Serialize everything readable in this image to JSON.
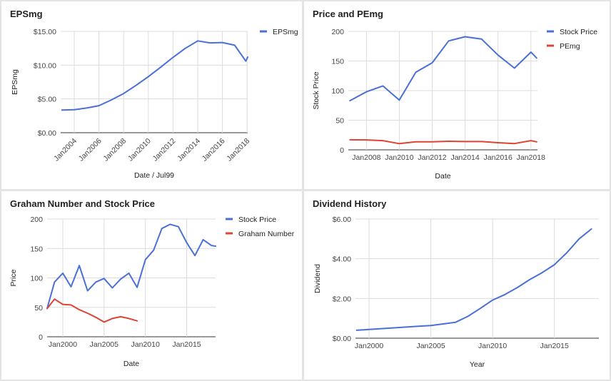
{
  "chart_data": [
    {
      "type": "line",
      "title": "EPSmg",
      "xlabel": "Date / Jul99",
      "ylabel": "EPSmg",
      "x_tick_labels": [
        "Jan2004",
        "Jan2006",
        "Jan2008",
        "Jan2010",
        "Jan2012",
        "Jan2014",
        "Jan2016",
        "Jan2018"
      ],
      "x_tick_values": [
        2004,
        2006,
        2008,
        2010,
        2012,
        2014,
        2016,
        2018
      ],
      "y_tick_labels": [
        "$0.00",
        "$5.00",
        "$10.00",
        "$15.00"
      ],
      "y_tick_values": [
        0,
        5,
        10,
        15
      ],
      "xlim": [
        2002.9,
        2018.05
      ],
      "ylim": [
        0,
        15
      ],
      "legend_position": "top-right",
      "grid": true,
      "series": [
        {
          "name": "EPSmg",
          "color": "#4a6fd6",
          "x": [
            2003,
            2004,
            2005,
            2006,
            2007,
            2008,
            2009,
            2010,
            2011,
            2012,
            2013,
            2014,
            2015,
            2016,
            2017,
            2017.9,
            2018.05
          ],
          "y": [
            3.35,
            3.4,
            3.65,
            4.0,
            4.85,
            5.8,
            7.0,
            8.3,
            9.7,
            11.15,
            12.5,
            13.6,
            13.3,
            13.35,
            12.95,
            10.6,
            11.2
          ]
        }
      ]
    },
    {
      "type": "line",
      "title": "Price and PEmg",
      "xlabel": "Date",
      "ylabel": "Stock Price",
      "x_tick_labels": [
        "Jan2008",
        "Jan2010",
        "Jan2012",
        "Jan2014",
        "Jan2016",
        "Jan2018"
      ],
      "x_tick_values": [
        2008,
        2010,
        2012,
        2014,
        2016,
        2018
      ],
      "y_tick_labels": [
        "0",
        "50",
        "100",
        "150",
        "200"
      ],
      "y_tick_values": [
        0,
        50,
        100,
        150,
        200
      ],
      "xlim": [
        2006.9,
        2018.4
      ],
      "ylim": [
        0,
        200
      ],
      "legend_position": "top-right",
      "grid": true,
      "series": [
        {
          "name": "Stock Price",
          "color": "#4a6fd6",
          "x": [
            2007,
            2008,
            2009,
            2010,
            2011,
            2012,
            2013,
            2014,
            2015,
            2016,
            2017,
            2018,
            2018.35
          ],
          "y": [
            83,
            98,
            108,
            84,
            131,
            147,
            184,
            191,
            187,
            160,
            138,
            165,
            155
          ]
        },
        {
          "name": "PEmg",
          "color": "#db4437",
          "x": [
            2007,
            2008,
            2009,
            2010,
            2011,
            2012,
            2013,
            2014,
            2015,
            2016,
            2017,
            2018,
            2018.35
          ],
          "y": [
            17,
            16.8,
            15.5,
            10.5,
            13.5,
            13.5,
            14.5,
            14,
            14,
            12,
            10.6,
            15.5,
            13.5
          ]
        }
      ]
    },
    {
      "type": "line",
      "title": "Graham Number and Stock Price",
      "xlabel": "Date",
      "ylabel": "Price",
      "x_tick_labels": [
        "Jan2000",
        "Jan2005",
        "Jan2010",
        "Jan2015"
      ],
      "x_tick_values": [
        2000,
        2005,
        2010,
        2015
      ],
      "y_tick_labels": [
        "0",
        "50",
        "100",
        "150",
        "200"
      ],
      "y_tick_values": [
        0,
        50,
        100,
        150,
        200
      ],
      "xlim": [
        1998.1,
        2018.5
      ],
      "ylim": [
        0,
        200
      ],
      "legend_position": "top-right",
      "grid": true,
      "series": [
        {
          "name": "Stock Price",
          "color": "#4a6fd6",
          "x": [
            1998.1,
            1999,
            2000,
            2001,
            2002,
            2003,
            2004,
            2005,
            2006,
            2007,
            2008,
            2009,
            2010,
            2011,
            2012,
            2013,
            2014,
            2015,
            2016,
            2017,
            2018,
            2018.5
          ],
          "y": [
            48,
            93,
            108,
            85,
            121,
            78,
            93,
            99,
            83,
            98,
            108,
            84,
            131,
            147,
            184,
            191,
            187,
            160,
            138,
            165,
            155,
            154
          ]
        },
        {
          "name": "Graham Number",
          "color": "#db4437",
          "x": [
            1998.1,
            1999,
            2000,
            2001,
            2002,
            2003,
            2004,
            2005,
            2006,
            2007,
            2008,
            2009
          ],
          "y": [
            48,
            64,
            55,
            54,
            46,
            40,
            33,
            25,
            31,
            34,
            31,
            27
          ]
        }
      ]
    },
    {
      "type": "line",
      "title": "Dividend History",
      "xlabel": "Year",
      "ylabel": "Dividend",
      "x_tick_labels": [
        "Jan2000",
        "Jan2005",
        "Jan2010",
        "Jan2015"
      ],
      "x_tick_values": [
        2000,
        2005,
        2010,
        2015
      ],
      "y_tick_labels": [
        "$0.00",
        "$2.00",
        "$4.00",
        "$6.00"
      ],
      "y_tick_values": [
        0,
        2,
        4,
        6
      ],
      "xlim": [
        1998.9,
        2018.6
      ],
      "ylim": [
        0,
        6
      ],
      "legend_position": "none",
      "grid": true,
      "series": [
        {
          "color": "#4a6fd6",
          "x": [
            1999,
            2000,
            2001,
            2002,
            2003,
            2004,
            2005,
            2006,
            2007,
            2008,
            2009,
            2010,
            2011,
            2012,
            2013,
            2014,
            2015,
            2016,
            2017,
            2018
          ],
          "y": [
            0.4,
            0.44,
            0.48,
            0.52,
            0.56,
            0.6,
            0.64,
            0.72,
            0.8,
            1.1,
            1.5,
            1.92,
            2.2,
            2.55,
            2.95,
            3.3,
            3.7,
            4.3,
            5.0,
            5.5
          ]
        }
      ]
    }
  ]
}
